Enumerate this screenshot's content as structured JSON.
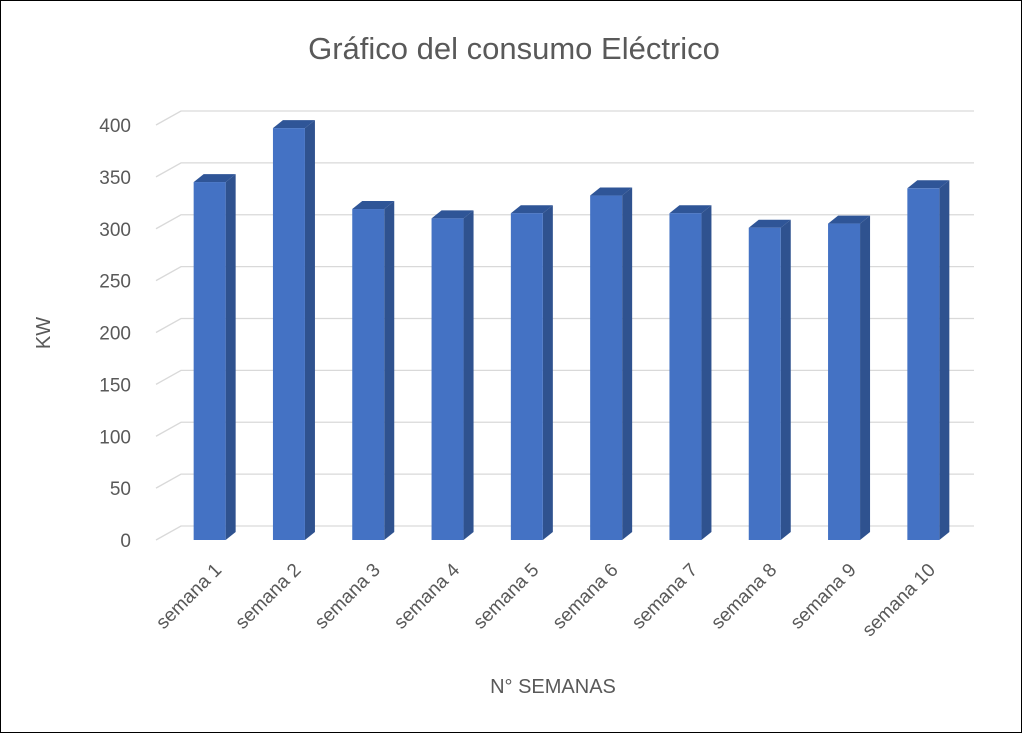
{
  "chart_data": {
    "type": "bar",
    "style": "3d-column",
    "title": "Gráfico del consumo Eléctrico",
    "xlabel": "N° SEMANAS",
    "ylabel": "KW",
    "categories": [
      "semana 1",
      "semana 2",
      "semana 3",
      "semana 4",
      "semana 5",
      "semana 6",
      "semana 7",
      "semana 8",
      "semana 9",
      "semana 10"
    ],
    "series": [
      {
        "values": [
          345,
          397,
          319,
          310,
          315,
          332,
          315,
          301,
          305,
          339
        ]
      }
    ],
    "ylim": [
      0,
      400
    ],
    "yticks": [
      0,
      50,
      100,
      150,
      200,
      250,
      300,
      350,
      400
    ],
    "grid": true,
    "legend": "none",
    "colors": {
      "front": "#4472c4",
      "side": "#2f528f",
      "top": "#2f5597",
      "grid": "#d9d9d9",
      "text": "#595959"
    }
  }
}
